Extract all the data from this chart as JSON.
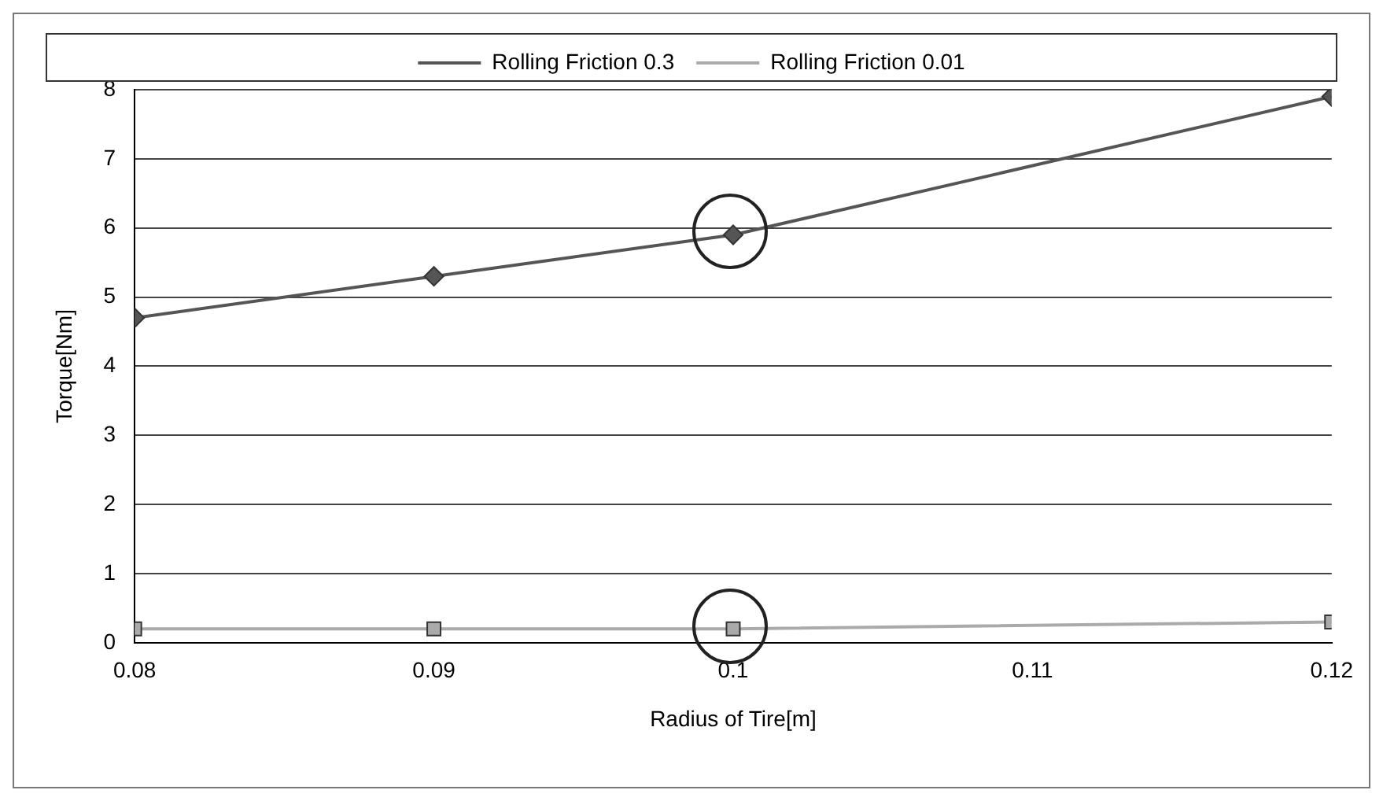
{
  "chart_data": {
    "type": "line",
    "xlabel": "Radius of Tire[m]",
    "ylabel": "Torque[Nm]",
    "x": [
      0.08,
      0.09,
      0.1,
      0.12
    ],
    "series": [
      {
        "name": "Rolling Friction 0.3",
        "color": "#555555",
        "marker": "diamond",
        "values": [
          4.7,
          5.3,
          5.9,
          7.9
        ]
      },
      {
        "name": "Rolling Friction 0.01",
        "color": "#aaaaaa",
        "marker": "square",
        "values": [
          0.2,
          0.2,
          0.2,
          0.3
        ]
      }
    ],
    "xlim": [
      0.08,
      0.12
    ],
    "xticks": [
      0.08,
      0.09,
      0.1,
      0.11,
      0.12
    ],
    "ylim": [
      0,
      8
    ],
    "yticks": [
      0,
      1,
      2,
      3,
      4,
      5,
      6,
      7,
      8
    ],
    "grid": "y",
    "legend": "top",
    "line_style": "solid"
  }
}
